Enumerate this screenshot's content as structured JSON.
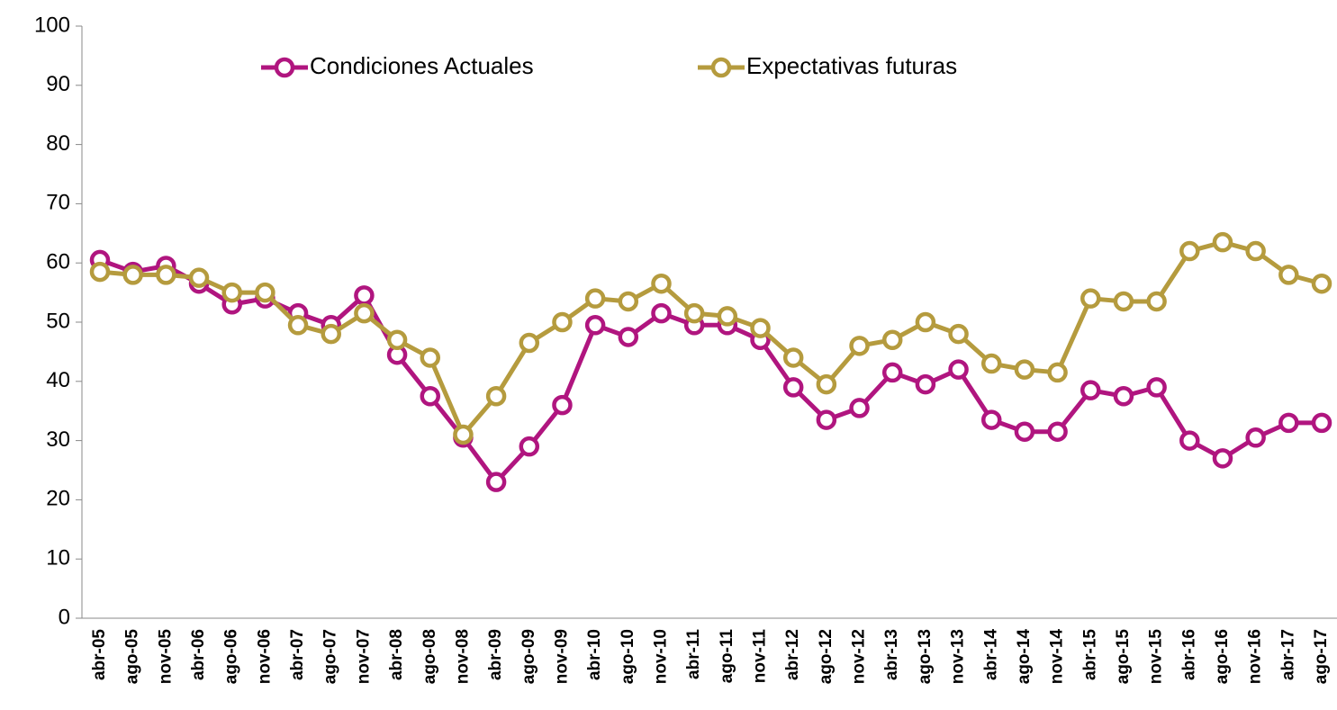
{
  "chart_data": {
    "type": "line",
    "categories": [
      "abr-05",
      "ago-05",
      "nov-05",
      "abr-06",
      "ago-06",
      "nov-06",
      "abr-07",
      "ago-07",
      "nov-07",
      "abr-08",
      "ago-08",
      "nov-08",
      "abr-09",
      "ago-09",
      "nov-09",
      "abr-10",
      "ago-10",
      "nov-10",
      "abr-11",
      "ago-11",
      "nov-11",
      "abr-12",
      "ago-12",
      "nov-12",
      "abr-13",
      "ago-13",
      "nov-13",
      "abr-14",
      "ago-14",
      "nov-14",
      "abr-15",
      "ago-15",
      "nov-15",
      "abr-16",
      "ago-16",
      "nov-16",
      "abr-17",
      "ago-17"
    ],
    "series": [
      {
        "name": "Condiciones Actuales",
        "color": "#b0157f",
        "values": [
          60.5,
          58.5,
          59.5,
          56.5,
          53,
          54,
          51.5,
          49.5,
          54.5,
          44.5,
          37.5,
          30.5,
          23,
          29,
          36,
          49.5,
          47.5,
          51.5,
          49.5,
          49.5,
          47,
          39,
          33.5,
          35.5,
          41.5,
          39.5,
          42,
          33.5,
          31.5,
          31.5,
          38.5,
          37.5,
          39,
          30,
          27,
          30.5,
          33,
          33
        ]
      },
      {
        "name": "Expectativas futuras",
        "color": "#b59b3e",
        "values": [
          58.5,
          58,
          58,
          57.5,
          55,
          55,
          49.5,
          48,
          51.5,
          47,
          44,
          31,
          37.5,
          46.5,
          50,
          54,
          53.5,
          56.5,
          51.5,
          51,
          49,
          44,
          39.5,
          46,
          47,
          50,
          48,
          43,
          42,
          41.5,
          54,
          53.5,
          53.5,
          62,
          63.5,
          62,
          58,
          56.5
        ]
      }
    ],
    "ylim": [
      0,
      100
    ],
    "yticks": [
      0,
      10,
      20,
      30,
      40,
      50,
      60,
      70,
      80,
      90,
      100
    ],
    "grid": false,
    "legend": "top"
  }
}
